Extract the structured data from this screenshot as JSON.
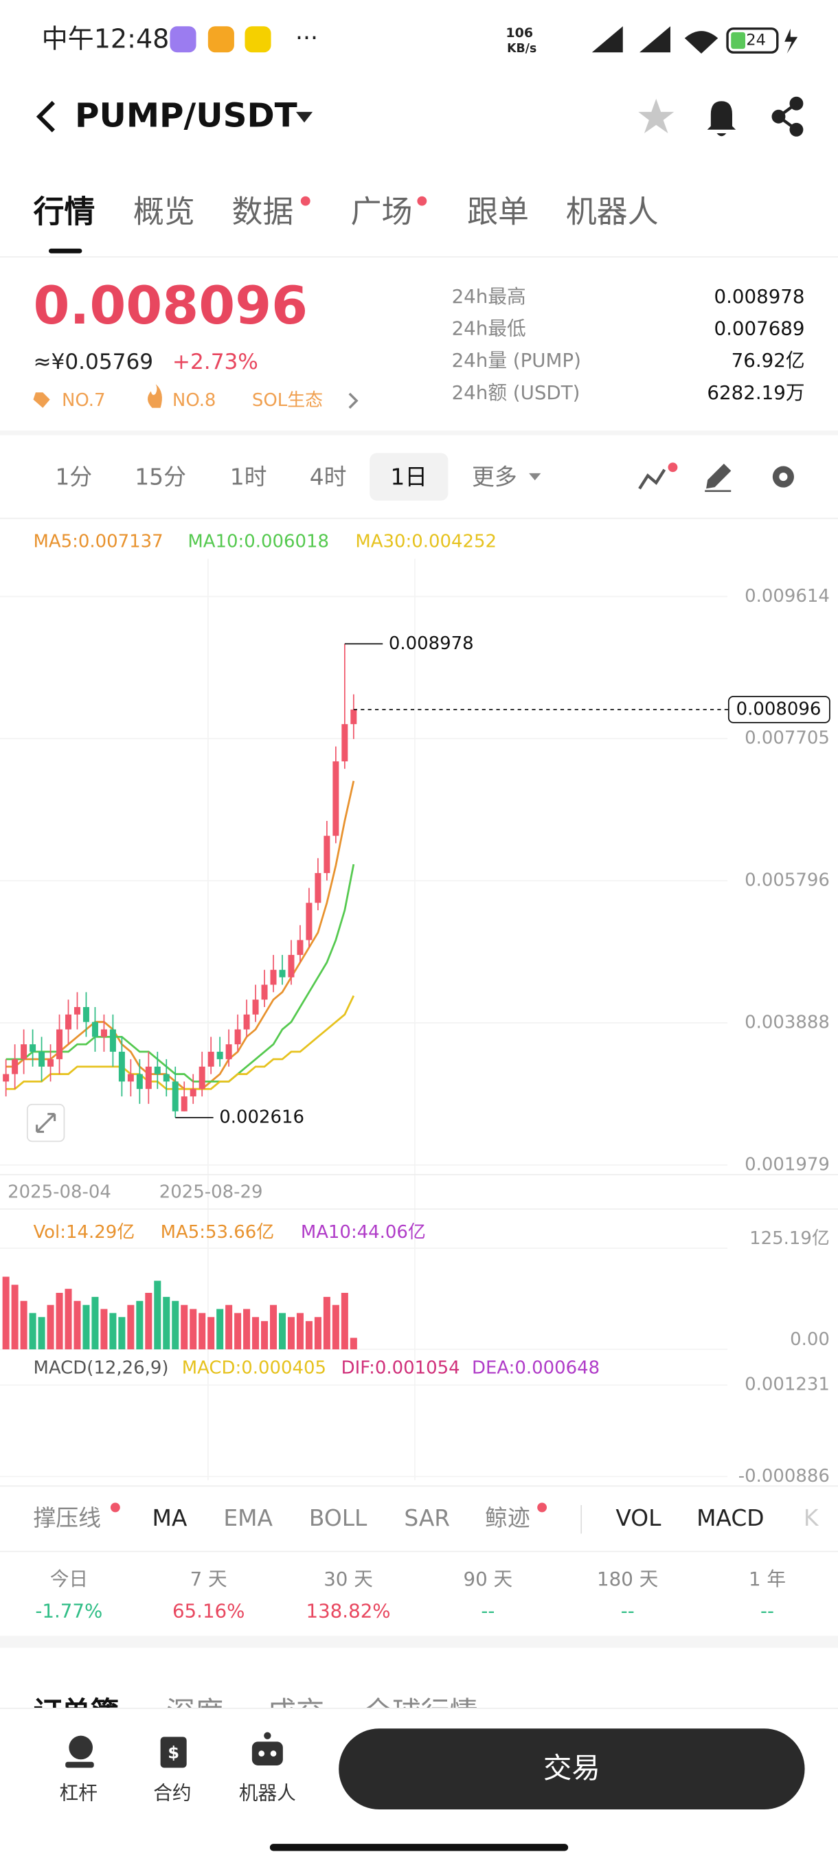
{
  "status_bar": {
    "time": "中午12:48",
    "net_speed": "106",
    "net_unit": "KB/s",
    "battery": "24"
  },
  "header": {
    "pair": "PUMP/USDT"
  },
  "tabs": [
    "行情",
    "概览",
    "数据",
    "广场",
    "跟单",
    "机器人"
  ],
  "price": {
    "last": "0.008096",
    "cny": "≈¥0.05769",
    "change": "+2.73%",
    "tags": [
      "NO.7",
      "NO.8",
      "SOL生态"
    ]
  },
  "stats": [
    {
      "label": "24h最高",
      "value": "0.008978"
    },
    {
      "label": "24h最低",
      "value": "0.007689"
    },
    {
      "label": "24h量 (PUMP)",
      "value": "76.92亿"
    },
    {
      "label": "24h额 (USDT)",
      "value": "6282.19万"
    }
  ],
  "intervals": [
    "1分",
    "15分",
    "1时",
    "4时",
    "1日",
    "更多"
  ],
  "chart_data": {
    "type": "candlestick",
    "up_color": "#f0566a",
    "down_color": "#2ebd85",
    "categories": [
      null,
      null,
      null,
      null,
      null,
      null,
      "2025-08-04",
      null,
      null,
      null,
      null,
      null,
      null,
      null,
      null,
      null,
      null,
      null,
      null,
      null,
      null,
      null,
      null,
      "2025-08-29",
      null,
      null,
      null,
      null,
      null,
      null,
      null,
      null,
      null,
      null,
      null,
      null,
      null,
      null,
      null,
      null
    ],
    "open": [
      0.0031,
      0.0032,
      0.0034,
      0.0036,
      0.0035,
      0.0033,
      0.0034,
      0.0038,
      0.004,
      0.0041,
      0.0039,
      0.0037,
      0.0038,
      0.0035,
      0.0031,
      0.0032,
      0.003,
      0.0033,
      0.0032,
      0.0031,
      0.0027,
      0.0029,
      0.003,
      0.0033,
      0.0035,
      0.0034,
      0.0036,
      0.0038,
      0.004,
      0.0042,
      0.0044,
      0.0046,
      0.0045,
      0.0048,
      0.005,
      0.0055,
      0.0059,
      0.0064,
      0.0074,
      0.0079
    ],
    "high": [
      0.0034,
      0.0036,
      0.0038,
      0.0038,
      0.0037,
      0.0036,
      0.004,
      0.0042,
      0.0043,
      0.0043,
      0.0041,
      0.004,
      0.004,
      0.0037,
      0.0034,
      0.0034,
      0.0035,
      0.0035,
      0.0034,
      0.0033,
      0.0031,
      0.0032,
      0.0035,
      0.0037,
      0.0037,
      0.0038,
      0.004,
      0.0042,
      0.0044,
      0.0046,
      0.0048,
      0.0048,
      0.005,
      0.0052,
      0.0057,
      0.0061,
      0.0066,
      0.0076,
      0.008978,
      0.0083
    ],
    "low": [
      0.0029,
      0.003,
      0.0032,
      0.0033,
      0.0031,
      0.0031,
      0.0032,
      0.0036,
      0.0038,
      0.0037,
      0.0035,
      0.0035,
      0.0033,
      0.0029,
      0.0029,
      0.0028,
      0.0028,
      0.003,
      0.0029,
      0.002616,
      0.0027,
      0.0028,
      0.0029,
      0.0032,
      0.0033,
      0.0033,
      0.0035,
      0.0037,
      0.0039,
      0.0041,
      0.0043,
      0.0044,
      0.0044,
      0.0047,
      0.0049,
      0.0054,
      0.0058,
      0.0063,
      0.0073,
      0.0077
    ],
    "close": [
      0.0032,
      0.0034,
      0.0036,
      0.0035,
      0.0033,
      0.0034,
      0.0038,
      0.004,
      0.0041,
      0.0039,
      0.0037,
      0.0038,
      0.0035,
      0.0031,
      0.0032,
      0.003,
      0.0033,
      0.0032,
      0.0031,
      0.0027,
      0.0029,
      0.003,
      0.0033,
      0.0035,
      0.0034,
      0.0036,
      0.0038,
      0.004,
      0.0042,
      0.0044,
      0.0046,
      0.0045,
      0.0048,
      0.005,
      0.0055,
      0.0059,
      0.0064,
      0.0074,
      0.0079,
      0.008096
    ],
    "series": [
      {
        "name": "MA5:0.007137",
        "color": "#e8922e",
        "values": [
          0.0033,
          0.0033,
          0.0034,
          0.0034,
          0.0034,
          0.0034,
          0.0035,
          0.0036,
          0.0037,
          0.0038,
          0.0039,
          0.0039,
          0.0038,
          0.0036,
          0.0035,
          0.0033,
          0.0032,
          0.0032,
          0.0032,
          0.0031,
          0.003,
          0.003,
          0.003,
          0.0031,
          0.0032,
          0.0034,
          0.0035,
          0.0037,
          0.0038,
          0.004,
          0.0042,
          0.0043,
          0.0045,
          0.0047,
          0.0049,
          0.0051,
          0.0055,
          0.006,
          0.0066,
          0.007137
        ]
      },
      {
        "name": "MA10:0.006018",
        "color": "#55c94f",
        "values": [
          0.0034,
          0.0034,
          0.0034,
          0.0035,
          0.0035,
          0.0035,
          0.0035,
          0.0035,
          0.0036,
          0.0036,
          0.0037,
          0.0037,
          0.0037,
          0.0037,
          0.0036,
          0.0035,
          0.0035,
          0.0034,
          0.0033,
          0.0032,
          0.0032,
          0.0031,
          0.0031,
          0.0031,
          0.0031,
          0.0031,
          0.0032,
          0.0033,
          0.0034,
          0.0035,
          0.0036,
          0.0038,
          0.0039,
          0.0041,
          0.0043,
          0.0045,
          0.0047,
          0.005,
          0.0054,
          0.006018
        ]
      },
      {
        "name": "MA30:0.004252",
        "color": "#e6c21e",
        "values": [
          0.003,
          0.003,
          0.0031,
          0.0031,
          0.0031,
          0.0032,
          0.0032,
          0.0032,
          0.0033,
          0.0033,
          0.0033,
          0.0033,
          0.0033,
          0.0033,
          0.0032,
          0.0032,
          0.0031,
          0.0031,
          0.003,
          0.003,
          0.003,
          0.003,
          0.003,
          0.003,
          0.0031,
          0.0031,
          0.0032,
          0.0032,
          0.0033,
          0.0033,
          0.0034,
          0.0034,
          0.0035,
          0.0035,
          0.0036,
          0.0037,
          0.0038,
          0.0039,
          0.004,
          0.004252
        ]
      }
    ],
    "ylim": [
      0.00185,
      0.01012
    ],
    "yticks": [
      0.009614,
      0.007705,
      0.005796,
      0.003888,
      0.001979
    ],
    "volume": {
      "legend": [
        {
          "name": "Vol:14.29亿",
          "color": "#e8922e"
        },
        {
          "name": "MA5:53.66亿",
          "color": "#e8922e"
        },
        {
          "name": "MA10:44.06亿",
          "color": "#b03cc8"
        }
      ],
      "values": [
        90,
        80,
        60,
        45,
        40,
        55,
        70,
        75,
        60,
        55,
        65,
        50,
        45,
        40,
        55,
        60,
        70,
        85,
        65,
        60,
        55,
        50,
        45,
        40,
        50,
        55,
        45,
        50,
        40,
        35,
        55,
        45,
        40,
        45,
        35,
        40,
        65,
        55,
        70,
        14.29
      ],
      "ylim": [
        0,
        125.19
      ],
      "yticks": [
        {
          "value": 125.19,
          "label": "125.19亿"
        },
        {
          "value": 0,
          "label": "0.00"
        }
      ]
    },
    "macd": {
      "legend": [
        {
          "name": "MACD(12,26,9)",
          "color": "#555"
        },
        {
          "name": "MACD:0.000405",
          "color": "#e6c21e"
        },
        {
          "name": "DIF:0.001054",
          "color": "#d0307a"
        },
        {
          "name": "DEA:0.000648",
          "color": "#b03cc8"
        }
      ],
      "ylim": [
        -0.000886,
        0.001231
      ],
      "yticks": [
        0.001231,
        -0.000886
      ]
    }
  },
  "indicators": [
    "撑压线",
    "MA",
    "EMA",
    "BOLL",
    "SAR",
    "鲸迹",
    "VOL",
    "MACD",
    "K"
  ],
  "performance": [
    {
      "label": "今日",
      "value": "-1.77%"
    },
    {
      "label": "7 天",
      "value": "65.16%"
    },
    {
      "label": "30 天",
      "value": "138.82%"
    },
    {
      "label": "90 天",
      "value": "--"
    },
    {
      "label": "180 天",
      "value": "--"
    },
    {
      "label": "1 年",
      "value": "--"
    }
  ],
  "sections": [
    "订单簿",
    "深度",
    "成交",
    "全球行情"
  ],
  "bottom_nav": {
    "items": [
      "杠杆",
      "合约",
      "机器人"
    ],
    "trade": "交易"
  }
}
